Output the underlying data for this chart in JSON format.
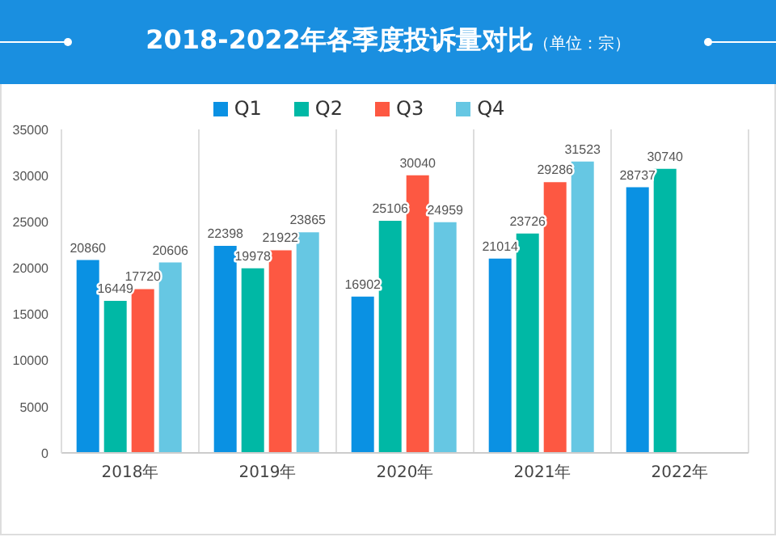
{
  "chart_data": {
    "type": "bar",
    "title": "2018-2022年各季度投诉量对比",
    "subtitle": "（单位：宗）",
    "categories": [
      "2018年",
      "2019年",
      "2020年",
      "2021年",
      "2022年"
    ],
    "series": [
      {
        "name": "Q1",
        "color": "#0a91e3",
        "values": [
          20860,
          22398,
          16902,
          21014,
          28737
        ]
      },
      {
        "name": "Q2",
        "color": "#00b8a5",
        "values": [
          16449,
          19978,
          25106,
          23726,
          30740
        ]
      },
      {
        "name": "Q3",
        "color": "#fd5842",
        "values": [
          17720,
          21922,
          30040,
          29286,
          null
        ]
      },
      {
        "name": "Q4",
        "color": "#66c7e3",
        "values": [
          20606,
          23865,
          24959,
          31523,
          null
        ]
      }
    ],
    "ylim": [
      0,
      35000
    ],
    "yticks": [
      0,
      5000,
      10000,
      15000,
      20000,
      25000,
      30000,
      35000
    ],
    "grid": "x",
    "legend": "top",
    "data_labels": true
  }
}
